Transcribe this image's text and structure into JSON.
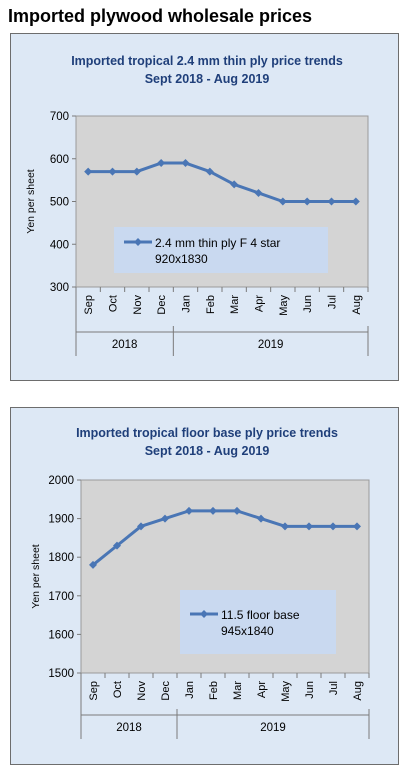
{
  "page_title": "Imported plywood wholesale prices",
  "chart_data": [
    {
      "type": "line",
      "title": "Imported tropical 2.4 mm thin ply price trends",
      "subtitle": "Sept 2018 - Aug 2019",
      "ylabel": "Yen per sheet",
      "ylim": [
        300,
        700
      ],
      "yticks": [
        300,
        400,
        500,
        600,
        700
      ],
      "categories": [
        "Sep",
        "Oct",
        "Nov",
        "Dec",
        "Jan",
        "Feb",
        "Mar",
        "Apr",
        "May",
        "Jun",
        "Jul",
        "Aug"
      ],
      "year_groups": [
        {
          "label": "2018",
          "count": 4
        },
        {
          "label": "2019",
          "count": 8
        }
      ],
      "series": [
        {
          "name": "2.4 mm thin ply F 4 star\n920x1830",
          "values": [
            570,
            570,
            570,
            590,
            590,
            570,
            540,
            520,
            500,
            500,
            500,
            500
          ]
        }
      ],
      "legend": "center-bottom",
      "colors": {
        "line": "#4a76b5",
        "plot_bg": "#d4d4d4",
        "legend_bg": "#c9d9f0",
        "title": "#1f3f7a"
      }
    },
    {
      "type": "line",
      "title": "Imported tropical floor base ply price trends",
      "subtitle": "Sept 2018 - Aug 2019",
      "ylabel": "Yen per sheet",
      "ylim": [
        1500,
        2000
      ],
      "yticks": [
        1500,
        1600,
        1700,
        1800,
        1900,
        2000
      ],
      "categories": [
        "Sep",
        "Oct",
        "Nov",
        "Dec",
        "Jan",
        "Feb",
        "Mar",
        "Apr",
        "May",
        "Jun",
        "Jul",
        "Aug"
      ],
      "year_groups": [
        {
          "label": "2018",
          "count": 4
        },
        {
          "label": "2019",
          "count": 8
        }
      ],
      "series": [
        {
          "name": "11.5 floor base\n945x1840",
          "values": [
            1780,
            1830,
            1880,
            1900,
            1920,
            1920,
            1920,
            1900,
            1880,
            1880,
            1880,
            1880
          ]
        }
      ],
      "legend": "center-right",
      "colors": {
        "line": "#4a76b5",
        "plot_bg": "#d4d4d4",
        "legend_bg": "#c9d9f0",
        "title": "#1f3f7a"
      }
    }
  ]
}
